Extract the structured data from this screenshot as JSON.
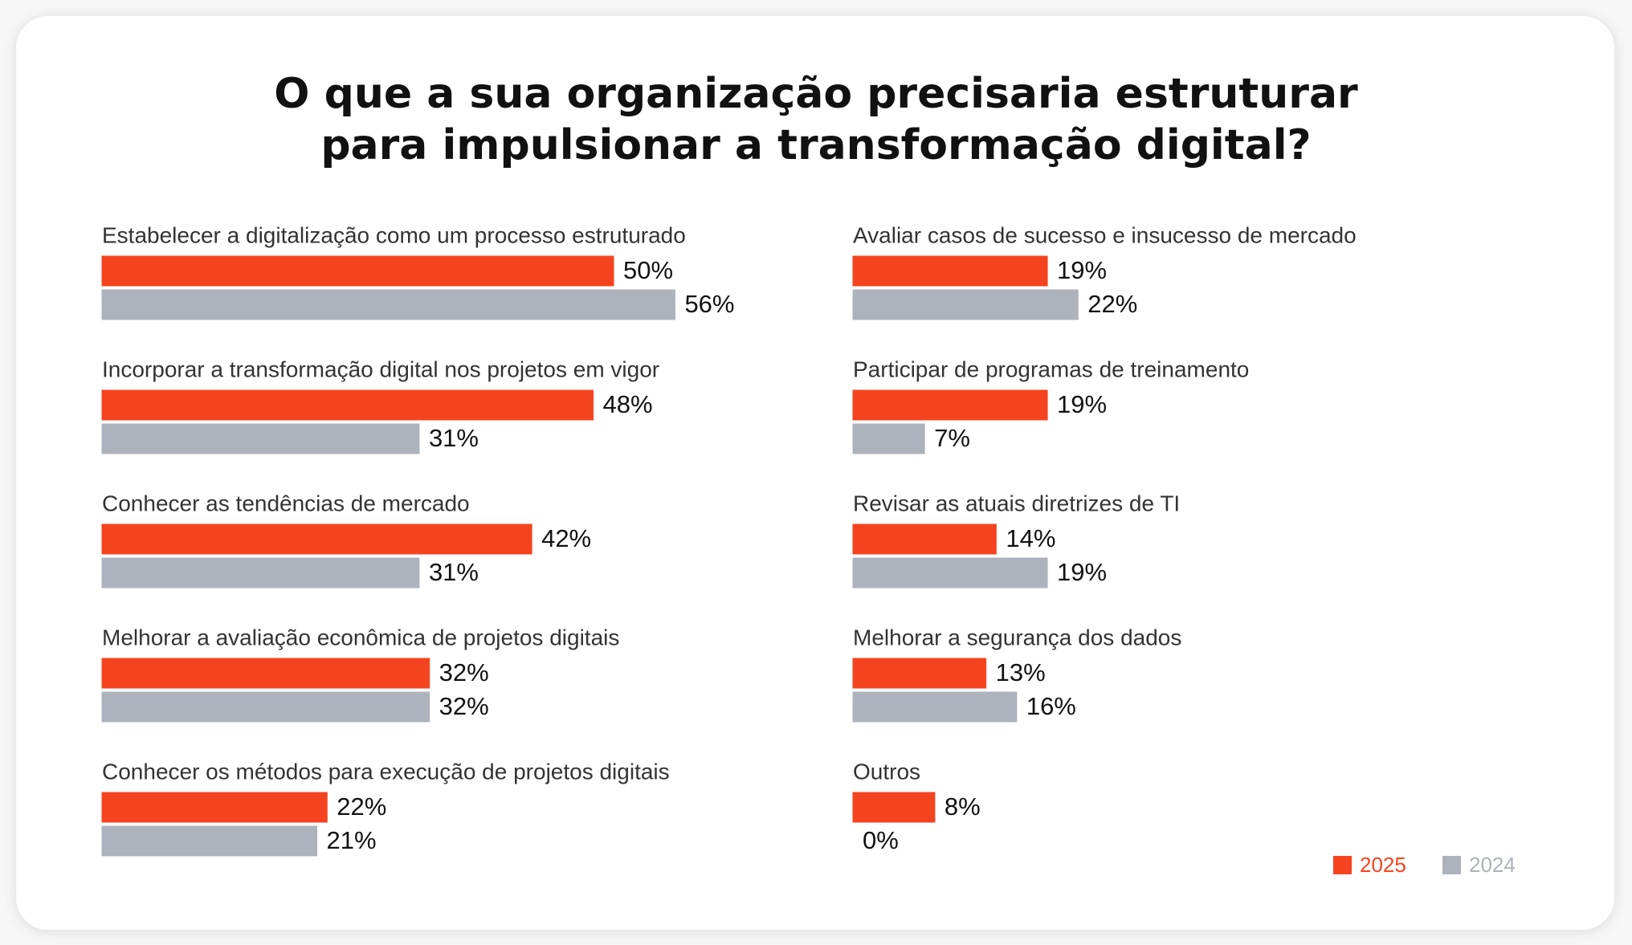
{
  "chart_data": {
    "type": "bar",
    "title": "O que a sua organização precisaria estruturar para impulsionar a transformação digital?",
    "categories": [
      "Estabelecer a digitalização como um processo estruturado",
      "Incorporar a transformação digital nos projetos em vigor",
      "Conhecer as tendências de mercado",
      "Melhorar a avaliação econômica de projetos digitais",
      "Conhecer os métodos para execução de projetos digitais",
      "Avaliar casos de sucesso e insucesso de mercado",
      "Participar de programas de treinamento",
      "Revisar as atuais diretrizes de TI",
      "Melhorar a segurança dos dados",
      "Outros"
    ],
    "series": [
      {
        "name": "2025",
        "color": "#f4441f",
        "values": [
          50,
          48,
          42,
          32,
          22,
          19,
          19,
          14,
          13,
          8
        ],
        "value_labels": [
          "50%",
          "48%",
          "42%",
          "32%",
          "22%",
          "19%",
          "19%",
          "14%",
          "13%",
          "8%"
        ]
      },
      {
        "name": "2024",
        "color": "#adb3bc",
        "values": [
          56,
          31,
          31,
          32,
          21,
          22,
          7,
          19,
          16,
          0
        ],
        "value_labels": [
          "56%",
          "31%",
          "31%",
          "32%",
          "21%",
          "22%",
          "7%",
          "19%",
          "16%",
          "0%"
        ]
      }
    ],
    "legend": "bottom-right"
  }
}
